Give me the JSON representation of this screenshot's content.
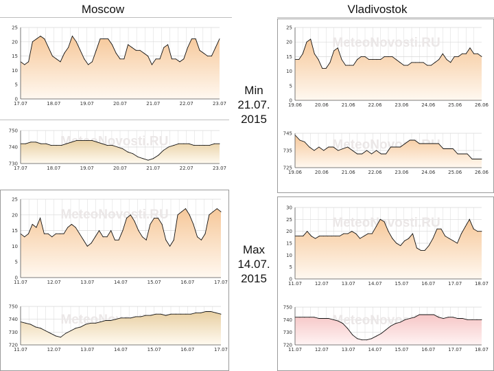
{
  "headers": {
    "left_city": "Moscow",
    "right_city": "Vladivostok"
  },
  "date_labels": {
    "min": [
      "Min",
      "21.07.",
      "2015"
    ],
    "max": [
      "Max",
      "14.07.",
      "2015"
    ]
  },
  "watermark": "MeteoNovosti.RU",
  "colors": {
    "line": "#111111",
    "grid": "#d7d7d7",
    "vgrid": "#d9d9d9",
    "fill_orange_top": "#f6c89a",
    "fill_orange_bottom": "#fff8f0",
    "fill_tan_top": "#e8cfa2",
    "fill_tan_bottom": "#fffaf0",
    "fill_pink_top": "#f6c6c6",
    "fill_pink_bottom": "#fff3f3"
  },
  "chart_data": [
    {
      "id": "moscow-min-temp",
      "type": "area",
      "city": "Moscow",
      "date": "21.07.2015",
      "variable": "temperature",
      "ylim": [
        0,
        25
      ],
      "yticks": [
        0,
        5,
        10,
        15,
        20,
        25
      ],
      "xticks": [
        "17.07",
        "18.07",
        "19.07",
        "20.07",
        "21.07",
        "22.07",
        "23.07"
      ],
      "values": [
        13,
        12,
        13,
        20,
        21,
        22,
        21,
        18,
        15,
        14,
        13,
        16,
        18,
        22,
        20,
        17,
        14,
        12,
        13,
        17,
        21,
        21,
        21,
        19,
        16,
        14,
        14,
        19,
        18,
        17,
        17,
        16,
        15,
        12,
        14,
        14,
        18,
        19,
        14,
        14,
        13,
        14,
        18,
        21,
        21,
        17,
        16,
        15,
        15,
        18,
        21
      ]
    },
    {
      "id": "moscow-min-pressure",
      "type": "area",
      "city": "Moscow",
      "date": "21.07.2015",
      "variable": "pressure",
      "ylim": [
        730,
        750
      ],
      "yticks": [
        730,
        740,
        750
      ],
      "xticks": [
        "17.07",
        "18.07",
        "19.07",
        "20.07",
        "21.07",
        "22.07",
        "23.07"
      ],
      "values": [
        742,
        742,
        743,
        743,
        742,
        742,
        741,
        741,
        741,
        742,
        743,
        744,
        744,
        744,
        744,
        743,
        742,
        741,
        741,
        740,
        739,
        737,
        736,
        734,
        733,
        732,
        733,
        735,
        738,
        740,
        741,
        742,
        742,
        742,
        741,
        741,
        741,
        741,
        742,
        742
      ]
    },
    {
      "id": "vladivostok-min-temp",
      "type": "area",
      "city": "Vladivostok",
      "date": "21.07.2015",
      "variable": "temperature",
      "ylim": [
        0,
        25
      ],
      "yticks": [
        0,
        5,
        10,
        15,
        20,
        25
      ],
      "xticks": [
        "19.06",
        "20.06",
        "21.06",
        "22.06",
        "23.06",
        "24.06",
        "25.06",
        "26.06"
      ],
      "values": [
        14,
        14,
        16,
        20,
        21,
        16,
        14,
        11,
        11,
        13,
        17,
        18,
        14,
        12,
        12,
        12,
        14,
        15,
        15,
        14,
        14,
        14,
        14,
        15,
        15,
        15,
        14,
        13,
        12,
        12,
        13,
        13,
        13,
        13,
        12,
        12,
        13,
        14,
        16,
        14,
        13,
        15,
        15,
        16,
        16,
        18,
        16,
        16,
        15
      ]
    },
    {
      "id": "vladivostok-min-pressure",
      "type": "area",
      "city": "Vladivostok",
      "date": "21.07.2015",
      "variable": "pressure",
      "ylim": [
        725,
        745
      ],
      "yticks": [
        725,
        735,
        745
      ],
      "xticks": [
        "19.06",
        "20.06",
        "21.06",
        "22.06",
        "23.06",
        "24.06",
        "25.06",
        "26.06"
      ],
      "values": [
        744,
        741,
        740,
        737,
        735,
        737,
        735,
        737,
        737,
        735,
        736,
        737,
        735,
        733,
        733,
        735,
        733,
        735,
        733,
        733,
        737,
        737,
        737,
        739,
        741,
        741,
        739,
        739,
        739,
        739,
        739,
        736,
        736,
        736,
        733,
        733,
        733,
        730,
        730,
        730
      ]
    },
    {
      "id": "moscow-max-temp",
      "type": "area",
      "city": "Moscow",
      "date": "14.07.2015",
      "variable": "temperature",
      "ylim": [
        0,
        25
      ],
      "yticks": [
        0,
        5,
        10,
        15,
        20,
        25
      ],
      "xticks": [
        "11.07",
        "12.07",
        "13.07",
        "14.07",
        "15.07",
        "16.07",
        "17.07"
      ],
      "values": [
        14,
        13,
        14,
        17,
        16,
        19,
        14,
        14,
        13,
        14,
        14,
        14,
        16,
        17,
        16,
        14,
        12,
        10,
        11,
        13,
        15,
        13,
        13,
        15,
        12,
        12,
        15,
        19,
        20,
        18,
        15,
        13,
        12,
        17,
        19,
        19,
        17,
        12,
        10,
        12,
        20,
        21,
        22,
        20,
        17,
        13,
        12,
        14,
        20,
        21,
        22,
        21
      ]
    },
    {
      "id": "moscow-max-pressure",
      "type": "area",
      "city": "Moscow",
      "date": "14.07.2015",
      "variable": "pressure",
      "ylim": [
        720,
        750
      ],
      "yticks": [
        720,
        730,
        740,
        750
      ],
      "xticks": [
        "11.07",
        "12.07",
        "13.07",
        "14.07",
        "15.07",
        "16.07",
        "17.07"
      ],
      "values": [
        738,
        737,
        736,
        734,
        733,
        731,
        729,
        727,
        726,
        729,
        731,
        733,
        734,
        736,
        737,
        737,
        738,
        739,
        739,
        740,
        741,
        741,
        741,
        742,
        742,
        743,
        743,
        744,
        744,
        743,
        744,
        744,
        744,
        744,
        744,
        745,
        745,
        746,
        746,
        745,
        744
      ]
    },
    {
      "id": "vladivostok-max-temp",
      "type": "area",
      "city": "Vladivostok",
      "date": "14.07.2015",
      "variable": "temperature",
      "ylim": [
        0,
        30
      ],
      "yticks": [
        0,
        5,
        10,
        15,
        20,
        25,
        30
      ],
      "xticks": [
        "11.07",
        "12.07",
        "13.07",
        "14.07",
        "15.07",
        "16.07",
        "17.07",
        "18.07"
      ],
      "values": [
        18,
        18,
        18,
        20,
        18,
        17,
        18,
        18,
        18,
        18,
        18,
        18,
        19,
        19,
        20,
        19,
        17,
        18,
        19,
        19,
        22,
        25,
        24,
        20,
        17,
        15,
        14,
        16,
        17,
        19,
        13,
        12,
        12,
        14,
        17,
        21,
        21,
        18,
        17,
        16,
        15,
        19,
        22,
        25,
        21,
        20,
        20
      ]
    },
    {
      "id": "vladivostok-max-pressure",
      "type": "area",
      "city": "Vladivostok",
      "date": "14.07.2015",
      "variable": "pressure",
      "ylim": [
        720,
        750
      ],
      "yticks": [
        720,
        730,
        740,
        750
      ],
      "xticks": [
        "11.07",
        "12.07",
        "13.07",
        "14.07",
        "15.07",
        "16.07",
        "17.07",
        "18.07"
      ],
      "values": [
        742,
        742,
        742,
        742,
        742,
        741,
        741,
        741,
        740,
        739,
        737,
        733,
        728,
        725,
        724,
        724,
        725,
        727,
        729,
        732,
        735,
        737,
        738,
        740,
        741,
        742,
        744,
        744,
        744,
        744,
        742,
        741,
        742,
        742,
        741,
        741,
        740,
        740,
        740,
        740
      ]
    }
  ]
}
